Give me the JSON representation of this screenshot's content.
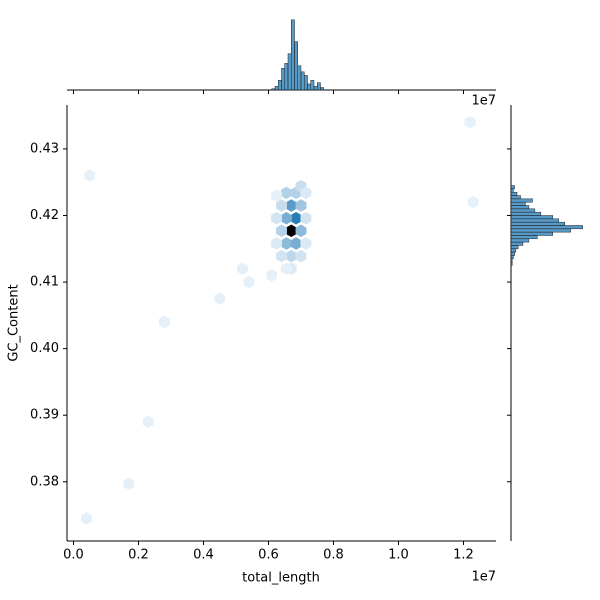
{
  "chart_data": [
    {
      "type": "hexbin",
      "xlabel": "total_length",
      "ylabel": "GC_Content",
      "offset_text": "1e7",
      "color": "#1f77b4",
      "xlim": [
        -200000,
        13000000
      ],
      "ylim": [
        0.3711,
        0.4366
      ],
      "xticks": [
        {
          "value": 0,
          "label": "0.0"
        },
        {
          "value": 2000000,
          "label": "0.2"
        },
        {
          "value": 4000000,
          "label": "0.4"
        },
        {
          "value": 6000000,
          "label": "0.6"
        },
        {
          "value": 8000000,
          "label": "0.8"
        },
        {
          "value": 10000000,
          "label": "1.0"
        },
        {
          "value": 12000000,
          "label": "1.2"
        }
      ],
      "yticks": [
        0.38,
        0.39,
        {
          "value": 0.4,
          "label": "0.40"
        },
        0.41,
        0.42,
        0.43
      ],
      "x": [
        6700000,
        6850000,
        6550000,
        7000000,
        6400000,
        6550000,
        6850000,
        6700000,
        6400000,
        7000000,
        6550000,
        6850000,
        7000000,
        6700000,
        6400000,
        7000000,
        6250000,
        7150000,
        6250000,
        7150000,
        6700000,
        6250000,
        7150000,
        6550000,
        500000,
        12200000,
        12300000,
        4500000,
        2800000,
        1700000,
        400000,
        2300000,
        5400000,
        5200000,
        6100000
      ],
      "y": [
        0.4177,
        0.4196,
        0.4196,
        0.4177,
        0.4177,
        0.4158,
        0.4158,
        0.4215,
        0.4215,
        0.4215,
        0.4234,
        0.4234,
        0.4244,
        0.4139,
        0.4139,
        0.4139,
        0.4196,
        0.4196,
        0.4158,
        0.4158,
        0.412,
        0.423,
        0.4234,
        0.412,
        0.426,
        0.434,
        0.422,
        0.4075,
        0.404,
        0.3797,
        0.3745,
        0.389,
        0.41,
        0.412,
        0.411
      ],
      "values": [
        60,
        20,
        12,
        10,
        6,
        10,
        12,
        15,
        4,
        8,
        6,
        6,
        4,
        5,
        3,
        3,
        3,
        3,
        2,
        2,
        2,
        1,
        2,
        1,
        1,
        1,
        1,
        1,
        1,
        1,
        1,
        1,
        1,
        1,
        1
      ]
    },
    {
      "type": "histogram",
      "orientation": "vertical",
      "color": "#1f77b4",
      "ylim": [
        0,
        62
      ],
      "bins": [
        6100000,
        6200000,
        6300000,
        6400000,
        6500000,
        6600000,
        6700000,
        6800000,
        6900000,
        7000000,
        7100000,
        7200000,
        7300000,
        7400000,
        7500000,
        7600000,
        7700000
      ],
      "values": [
        1,
        3,
        8,
        18,
        22,
        30,
        58,
        40,
        20,
        15,
        12,
        5,
        8,
        3,
        6,
        2
      ]
    },
    {
      "type": "histogram",
      "orientation": "horizontal",
      "color": "#1f77b4",
      "xlim": [
        0,
        62
      ],
      "bins": [
        0.4125,
        0.413,
        0.4135,
        0.414,
        0.4145,
        0.415,
        0.4155,
        0.416,
        0.4165,
        0.417,
        0.4175,
        0.418,
        0.4185,
        0.419,
        0.4195,
        0.42,
        0.4205,
        0.421,
        0.4215,
        0.422,
        0.4225,
        0.423,
        0.4235,
        0.424,
        0.4245
      ],
      "values": [
        1,
        1,
        2,
        3,
        4,
        6,
        10,
        15,
        22,
        35,
        50,
        60,
        45,
        40,
        35,
        25,
        20,
        15,
        12,
        18,
        8,
        5,
        2,
        3
      ]
    }
  ]
}
